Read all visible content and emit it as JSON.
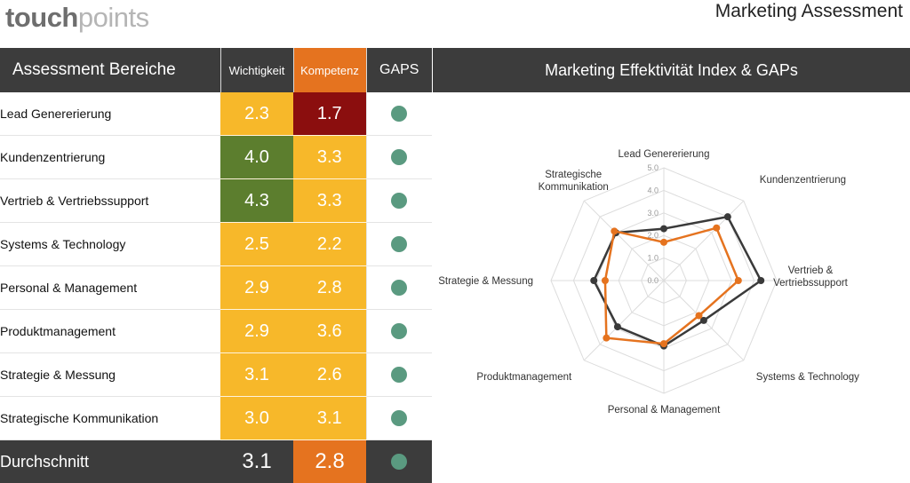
{
  "logo": {
    "part1": "touch",
    "part2": "points"
  },
  "page_title": "Marketing Assessment",
  "table": {
    "headers": {
      "area": "Assessment Bereiche",
      "importance": "Wichtigkeit",
      "competence": "Kompetenz",
      "gaps": "GAPS"
    },
    "rows": [
      {
        "label": "Lead Genererierung",
        "importance": "2.3",
        "competence": "1.7"
      },
      {
        "label": "Kundenzentrierung",
        "importance": "4.0",
        "competence": "3.3"
      },
      {
        "label": "Vertrieb & Vertriebssupport",
        "importance": "4.3",
        "competence": "3.3"
      },
      {
        "label": "Systems & Technology",
        "importance": "2.5",
        "competence": "2.2"
      },
      {
        "label": "Personal & Management",
        "importance": "2.9",
        "competence": "2.8"
      },
      {
        "label": "Produktmanagement",
        "importance": "2.9",
        "competence": "3.6"
      },
      {
        "label": "Strategie & Messung",
        "importance": "3.1",
        "competence": "2.6"
      },
      {
        "label": "Strategische Kommunikation",
        "importance": "3.0",
        "competence": "3.1"
      }
    ],
    "average": {
      "label": "Durchschnitt",
      "importance": "3.1",
      "competence": "2.8"
    }
  },
  "colors": {
    "yellow": "#f7b82a",
    "green": "#5c7e2e",
    "darkred": "#8b0e0e",
    "orange": "#e5731f",
    "dark": "#3c3c3c",
    "gap_dot": "#5a9a80"
  },
  "chart_data": {
    "type": "radar",
    "title": "Marketing Effektivität Index & GAPs",
    "axes": [
      [
        "Lead Genererierung"
      ],
      [
        "Kundenzentrierung"
      ],
      [
        "Vertrieb &",
        "Vertriebssupport"
      ],
      [
        "Systems & Technology"
      ],
      [
        "Personal & Management"
      ],
      [
        "Produktmanagement"
      ],
      [
        "Strategie & Messung"
      ],
      [
        "Strategische",
        "Kommunikation"
      ]
    ],
    "ticks": [
      "0.0",
      "1.0",
      "2.0",
      "3.0",
      "4.0",
      "5.0"
    ],
    "range": [
      0,
      5
    ],
    "series": [
      {
        "values": [
          2.3,
          4.0,
          4.3,
          2.5,
          2.9,
          2.9,
          3.1,
          3.0
        ],
        "color": "#3a3a3a"
      },
      {
        "values": [
          1.7,
          3.3,
          3.3,
          2.2,
          2.8,
          3.6,
          2.6,
          3.1
        ],
        "color": "#e5731f"
      }
    ]
  }
}
